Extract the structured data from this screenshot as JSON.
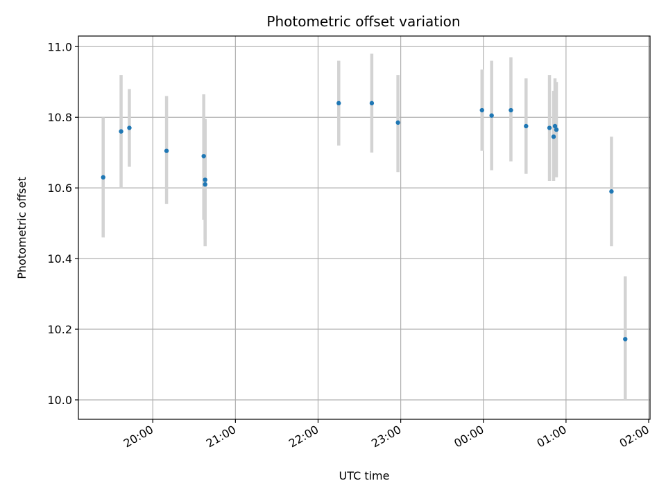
{
  "chart_data": {
    "type": "scatter",
    "title": "Photometric offset variation",
    "xlabel": "UTC time",
    "ylabel": "Photometric offset",
    "grid": true,
    "x_axis": {
      "kind": "time",
      "range": [
        "19:06",
        "02:01"
      ],
      "tick_labels": [
        "20:00",
        "21:00",
        "22:00",
        "23:00",
        "00:00",
        "01:00",
        "02:00"
      ],
      "tick_times": [
        "20:00",
        "21:00",
        "22:00",
        "23:00",
        "00:00",
        "01:00",
        "02:00"
      ]
    },
    "y_axis": {
      "range": [
        9.945,
        11.03
      ],
      "ticks": [
        10.0,
        10.2,
        10.4,
        10.6,
        10.8,
        11.0
      ],
      "tick_labels": [
        "10.0",
        "10.2",
        "10.4",
        "10.6",
        "10.8",
        "11.0"
      ]
    },
    "marker_color": "#1f77b4",
    "errorbar_color": "#d3d3d3",
    "points": [
      {
        "time": "19:24",
        "y": 10.63,
        "yerr_low": 10.46,
        "yerr_high": 10.8
      },
      {
        "time": "19:37",
        "y": 10.76,
        "yerr_low": 10.6,
        "yerr_high": 10.92
      },
      {
        "time": "19:43",
        "y": 10.77,
        "yerr_low": 10.66,
        "yerr_high": 10.88
      },
      {
        "time": "20:10",
        "y": 10.705,
        "yerr_low": 10.555,
        "yerr_high": 10.86
      },
      {
        "time": "20:37",
        "y": 10.69,
        "yerr_low": 10.51,
        "yerr_high": 10.865
      },
      {
        "time": "20:38",
        "y": 10.61,
        "yerr_low": 10.435,
        "yerr_high": 10.79
      },
      {
        "time": "20:38",
        "y": 10.623,
        "yerr_low": 10.455,
        "yerr_high": 10.795
      },
      {
        "time": "22:15",
        "y": 10.84,
        "yerr_low": 10.72,
        "yerr_high": 10.96
      },
      {
        "time": "22:39",
        "y": 10.84,
        "yerr_low": 10.7,
        "yerr_high": 10.98
      },
      {
        "time": "22:58",
        "y": 10.785,
        "yerr_low": 10.645,
        "yerr_high": 10.92
      },
      {
        "time": "23:59",
        "y": 10.82,
        "yerr_low": 10.705,
        "yerr_high": 10.935
      },
      {
        "time": "00:06",
        "y": 10.805,
        "yerr_low": 10.65,
        "yerr_high": 10.96
      },
      {
        "time": "00:20",
        "y": 10.82,
        "yerr_low": 10.675,
        "yerr_high": 10.97
      },
      {
        "time": "00:31",
        "y": 10.775,
        "yerr_low": 10.64,
        "yerr_high": 10.91
      },
      {
        "time": "00:48",
        "y": 10.77,
        "yerr_low": 10.62,
        "yerr_high": 10.92
      },
      {
        "time": "00:51",
        "y": 10.745,
        "yerr_low": 10.62,
        "yerr_high": 10.875
      },
      {
        "time": "00:52",
        "y": 10.775,
        "yerr_low": 10.64,
        "yerr_high": 10.91
      },
      {
        "time": "00:53",
        "y": 10.765,
        "yerr_low": 10.63,
        "yerr_high": 10.9
      },
      {
        "time": "01:33",
        "y": 10.59,
        "yerr_low": 10.435,
        "yerr_high": 10.745
      },
      {
        "time": "01:43",
        "y": 10.172,
        "yerr_low": 10.0,
        "yerr_high": 10.35
      }
    ]
  }
}
